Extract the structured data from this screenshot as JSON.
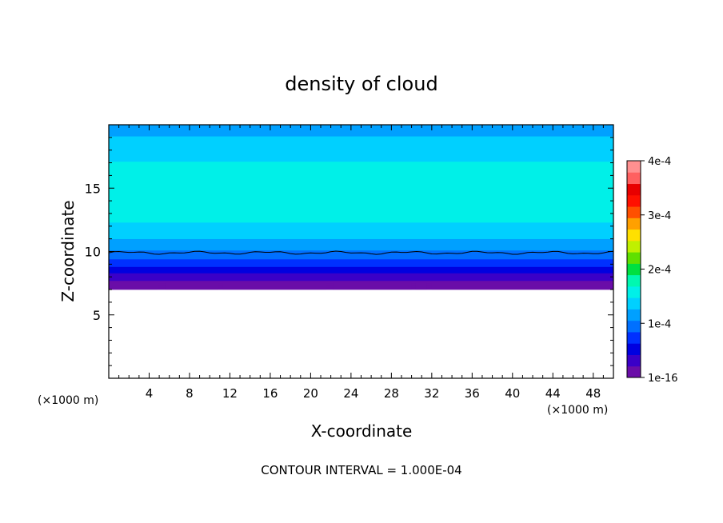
{
  "chart_data": {
    "type": "heatmap",
    "title": "density of cloud",
    "xlabel": "X-coordinate",
    "ylabel": "Z-coordinate",
    "x_unit_left": "(×1000 m)",
    "x_unit_right": "(×1000 m)",
    "footer": "CONTOUR INTERVAL = 1.000E-04",
    "xlim": [
      0,
      50
    ],
    "ylim": [
      0,
      20
    ],
    "x_ticks": [
      4,
      8,
      12,
      16,
      20,
      24,
      28,
      32,
      36,
      40,
      44,
      48
    ],
    "x_tick_labels": [
      "4",
      "8",
      "12",
      "16",
      "20",
      "24",
      "28",
      "32",
      "36",
      "40",
      "44",
      "48"
    ],
    "y_ticks": [
      5,
      10,
      15
    ],
    "y_tick_labels": [
      "5",
      "10",
      "15"
    ],
    "colorbar": {
      "range": [
        0,
        0.0004
      ],
      "ticks": [
        0,
        0.0001,
        0.0002,
        0.0003,
        0.0004
      ],
      "tick_labels": [
        "1e-16",
        "1e-4",
        "2e-4",
        "3e-4",
        "4e-4"
      ],
      "colors": [
        "#6a0da8",
        "#3a00c8",
        "#0000e0",
        "#0030ff",
        "#0070ff",
        "#00a0ff",
        "#00d0ff",
        "#00f0e8",
        "#00f8b0",
        "#00e040",
        "#60e000",
        "#c0f000",
        "#ffe000",
        "#ffa000",
        "#ff5000",
        "#ff1000",
        "#e80000",
        "#ff6060",
        "#ff9090"
      ]
    },
    "cloud_base_km": 7.0,
    "contour_level": 0.0001,
    "contour_z_km": 9.9,
    "vertical_profile": {
      "z": [
        7.0,
        7.5,
        8.0,
        8.5,
        9.0,
        9.5,
        10.0,
        10.5,
        11.0,
        12.0,
        12.5,
        13.5,
        16.5,
        18.0,
        19.0,
        20.0
      ],
      "value": [
        1e-05,
        2e-05,
        3e-05,
        5e-05,
        7e-05,
        9e-05,
        0.000105,
        0.000115,
        0.000125,
        0.00014,
        0.00015,
        0.00016,
        0.00015,
        0.00014,
        0.000125,
        0.000115
      ]
    }
  }
}
